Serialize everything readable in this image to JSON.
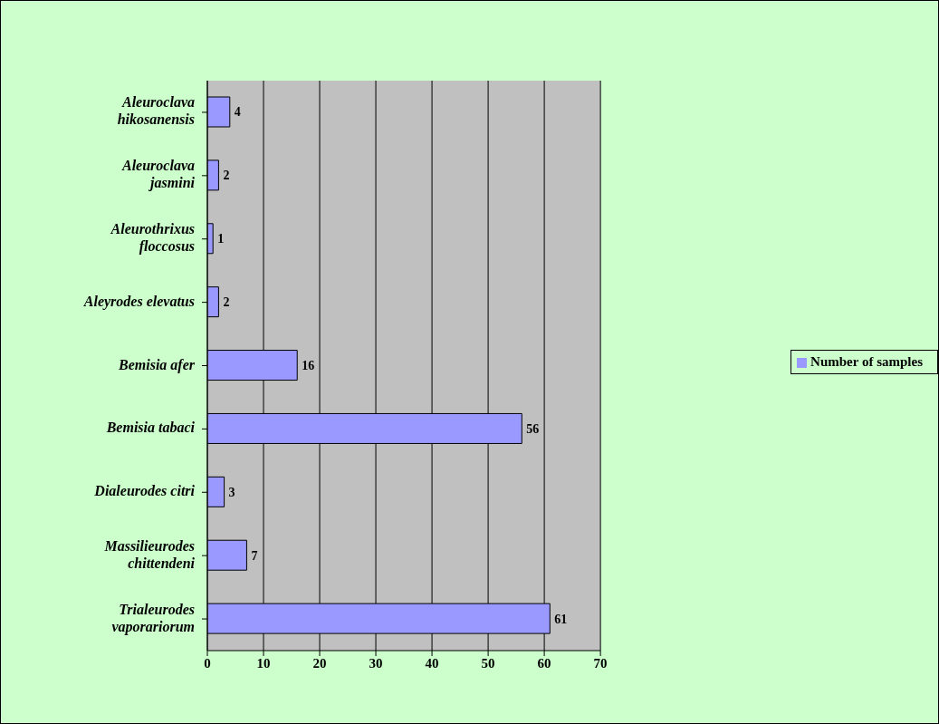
{
  "chart_data": {
    "type": "bar",
    "orientation": "horizontal",
    "categories": [
      "Aleuroclava hikosanensis",
      "Aleuroclava jasmini",
      "Aleurothrixus floccosus",
      "Aleyrodes elevatus",
      "Bemisia afer",
      "Bemisia tabaci",
      "Dialeurodes citri",
      "Massilieurodes chittendeni",
      "Trialeurodes vaporariorum"
    ],
    "series": [
      {
        "name": "Number of samples",
        "color": "#9999ff",
        "values": [
          4,
          2,
          1,
          2,
          16,
          56,
          3,
          7,
          61
        ]
      }
    ],
    "xlim": [
      0,
      70
    ],
    "xticks": [
      0,
      10,
      20,
      30,
      40,
      50,
      60,
      70
    ],
    "grid": "x",
    "legend": "right",
    "data_labels": true
  }
}
